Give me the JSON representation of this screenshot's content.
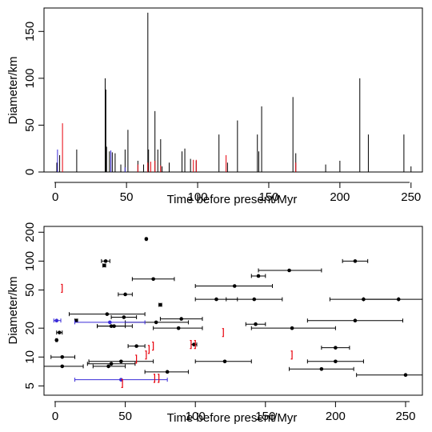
{
  "chart_data": [
    {
      "type": "bar",
      "xlabel": "Time before present/Myr",
      "ylabel": "Diameter/km",
      "xlim": [
        -8,
        258
      ],
      "ylim": [
        0,
        175
      ],
      "xticks": [
        "0",
        "50",
        "100",
        "150",
        "200",
        "250"
      ],
      "yticks": [
        "0",
        "50",
        "100",
        "150"
      ],
      "series": [
        {
          "color": "#000000",
          "points": [
            {
              "x": 1,
              "y": 10
            },
            {
              "x": 3,
              "y": 18
            },
            {
              "x": 15,
              "y": 24
            },
            {
              "x": 35,
              "y": 100
            },
            {
              "x": 35.5,
              "y": 88
            },
            {
              "x": 36,
              "y": 27
            },
            {
              "x": 38,
              "y": 22
            },
            {
              "x": 40,
              "y": 21
            },
            {
              "x": 42,
              "y": 20
            },
            {
              "x": 46,
              "y": 8
            },
            {
              "x": 49,
              "y": 24
            },
            {
              "x": 51,
              "y": 45
            },
            {
              "x": 58,
              "y": 12
            },
            {
              "x": 62,
              "y": 8
            },
            {
              "x": 65,
              "y": 170
            },
            {
              "x": 65.5,
              "y": 24
            },
            {
              "x": 70,
              "y": 65
            },
            {
              "x": 72,
              "y": 24
            },
            {
              "x": 74,
              "y": 35
            },
            {
              "x": 75,
              "y": 6
            },
            {
              "x": 80,
              "y": 10
            },
            {
              "x": 89,
              "y": 22
            },
            {
              "x": 91,
              "y": 25
            },
            {
              "x": 95,
              "y": 14
            },
            {
              "x": 99,
              "y": 12
            },
            {
              "x": 115,
              "y": 40
            },
            {
              "x": 121,
              "y": 10
            },
            {
              "x": 128,
              "y": 55
            },
            {
              "x": 142,
              "y": 40
            },
            {
              "x": 143,
              "y": 22
            },
            {
              "x": 145,
              "y": 70
            },
            {
              "x": 167,
              "y": 80
            },
            {
              "x": 169,
              "y": 20
            },
            {
              "x": 190,
              "y": 8
            },
            {
              "x": 200,
              "y": 12
            },
            {
              "x": 214,
              "y": 100
            },
            {
              "x": 220,
              "y": 40
            },
            {
              "x": 245,
              "y": 40
            },
            {
              "x": 250,
              "y": 6
            }
          ]
        },
        {
          "color": "#e8000b",
          "points": [
            {
              "x": 5,
              "y": 52
            },
            {
              "x": 58,
              "y": 8
            },
            {
              "x": 65,
              "y": 10
            },
            {
              "x": 67,
              "y": 11
            },
            {
              "x": 70,
              "y": 12
            },
            {
              "x": 74,
              "y": 7
            },
            {
              "x": 97,
              "y": 13
            },
            {
              "x": 99,
              "y": 13
            },
            {
              "x": 120,
              "y": 18
            },
            {
              "x": 169,
              "y": 10
            }
          ]
        },
        {
          "color": "#3a2bd8",
          "points": [
            {
              "x": 1.5,
              "y": 24
            },
            {
              "x": 39,
              "y": 23
            },
            {
              "x": 49,
              "y": 5
            }
          ]
        }
      ]
    },
    {
      "type": "scatter",
      "xlabel": "Time before present/Myr",
      "ylabel": "Diameter/km",
      "xlim": [
        -8,
        262
      ],
      "ylim": [
        4,
        230
      ],
      "yscale": "log",
      "xticks": [
        "0",
        "50",
        "100",
        "150",
        "200",
        "250"
      ],
      "yticks": [
        "5",
        "10",
        "20",
        "50",
        "100",
        "200"
      ],
      "points": [
        {
          "x": 65,
          "y": 170,
          "lo": 64.5,
          "hi": 65.5,
          "color": "#000000"
        },
        {
          "x": 214,
          "y": 100,
          "lo": 205,
          "hi": 223,
          "color": "#000000"
        },
        {
          "x": 36,
          "y": 100,
          "lo": 33,
          "hi": 39,
          "color": "#000000"
        },
        {
          "x": 35,
          "y": 90,
          "lo": 34,
          "hi": 36,
          "color": "#000000"
        },
        {
          "x": 167,
          "y": 80,
          "lo": 145,
          "hi": 190,
          "color": "#000000"
        },
        {
          "x": 145,
          "y": 70,
          "lo": 140,
          "hi": 150,
          "color": "#000000"
        },
        {
          "x": 70,
          "y": 65,
          "lo": 55,
          "hi": 85,
          "color": "#000000"
        },
        {
          "x": 128,
          "y": 55,
          "lo": 100,
          "hi": 155,
          "color": "#000000"
        },
        {
          "x": 50,
          "y": 45,
          "lo": 45,
          "hi": 55,
          "color": "#000000"
        },
        {
          "x": 115,
          "y": 40,
          "lo": 100,
          "hi": 130,
          "color": "#000000"
        },
        {
          "x": 142,
          "y": 40,
          "lo": 122,
          "hi": 162,
          "color": "#000000"
        },
        {
          "x": 220,
          "y": 40,
          "lo": 196,
          "hi": 245,
          "color": "#000000"
        },
        {
          "x": 245,
          "y": 40,
          "lo": 220,
          "hi": 270,
          "color": "#000000"
        },
        {
          "x": 75,
          "y": 35,
          "lo": 74,
          "hi": 76,
          "color": "#000000"
        },
        {
          "x": 37,
          "y": 28,
          "lo": 10,
          "hi": 64,
          "color": "#000000"
        },
        {
          "x": 49,
          "y": 26,
          "lo": 40,
          "hi": 58,
          "color": "#000000"
        },
        {
          "x": 90,
          "y": 25,
          "lo": 75,
          "hi": 105,
          "color": "#000000"
        },
        {
          "x": 15,
          "y": 24,
          "lo": 14,
          "hi": 16,
          "color": "#000000"
        },
        {
          "x": 72,
          "y": 23,
          "lo": 50,
          "hi": 95,
          "color": "#000000"
        },
        {
          "x": 143,
          "y": 22,
          "lo": 136,
          "hi": 150,
          "color": "#000000"
        },
        {
          "x": 214,
          "y": 24,
          "lo": 180,
          "hi": 248,
          "color": "#000000"
        },
        {
          "x": 40,
          "y": 21,
          "lo": 30,
          "hi": 50,
          "color": "#000000"
        },
        {
          "x": 42,
          "y": 21,
          "lo": 30,
          "hi": 55,
          "color": "#000000"
        },
        {
          "x": 88,
          "y": 20,
          "lo": 70,
          "hi": 105,
          "color": "#000000"
        },
        {
          "x": 169,
          "y": 20,
          "lo": 140,
          "hi": 200,
          "color": "#000000"
        },
        {
          "x": 3,
          "y": 18,
          "lo": 1,
          "hi": 5,
          "color": "#000000"
        },
        {
          "x": 1,
          "y": 15,
          "lo": 0.5,
          "hi": 1.5,
          "color": "#000000"
        },
        {
          "x": 99,
          "y": 13.5,
          "lo": 97,
          "hi": 101,
          "color": "#000000"
        },
        {
          "x": 58,
          "y": 13,
          "lo": 52,
          "hi": 64,
          "color": "#000000"
        },
        {
          "x": 200,
          "y": 12.5,
          "lo": 190,
          "hi": 210,
          "color": "#000000"
        },
        {
          "x": 5,
          "y": 10,
          "lo": -3,
          "hi": 14,
          "color": "#000000"
        },
        {
          "x": 47,
          "y": 9,
          "lo": 24,
          "hi": 70,
          "color": "#000000"
        },
        {
          "x": 121,
          "y": 9,
          "lo": 100,
          "hi": 140,
          "color": "#000000"
        },
        {
          "x": 200,
          "y": 9,
          "lo": 180,
          "hi": 220,
          "color": "#000000"
        },
        {
          "x": 5,
          "y": 8,
          "lo": -10,
          "hi": 20,
          "color": "#000000"
        },
        {
          "x": 38,
          "y": 8,
          "lo": 27,
          "hi": 50,
          "color": "#000000"
        },
        {
          "x": 40,
          "y": 8.5,
          "lo": 23,
          "hi": 57,
          "color": "#000000"
        },
        {
          "x": 190,
          "y": 7.5,
          "lo": 167,
          "hi": 213,
          "color": "#000000"
        },
        {
          "x": 80,
          "y": 7,
          "lo": 64,
          "hi": 95,
          "color": "#000000"
        },
        {
          "x": 250,
          "y": 6.5,
          "lo": 215,
          "hi": 280,
          "color": "#000000"
        },
        {
          "x": 1,
          "y": 24,
          "lo": -1,
          "hi": 4,
          "color": "#3a2bd8"
        },
        {
          "x": 39,
          "y": 23,
          "lo": 14,
          "hi": 64,
          "color": "#3a2bd8"
        },
        {
          "x": 47,
          "y": 5.8,
          "lo": 14,
          "hi": 80,
          "color": "#3a2bd8"
        }
      ],
      "ranges": [
        {
          "x": 5,
          "y": 52
        },
        {
          "x": 58,
          "y": 9.5
        },
        {
          "x": 65,
          "y": 10.5
        },
        {
          "x": 67,
          "y": 12
        },
        {
          "x": 70,
          "y": 13
        },
        {
          "x": 74,
          "y": 6
        },
        {
          "x": 71,
          "y": 6
        },
        {
          "x": 48,
          "y": 5.3
        },
        {
          "x": 97,
          "y": 13.5
        },
        {
          "x": 100,
          "y": 13.5
        },
        {
          "x": 120,
          "y": 18
        },
        {
          "x": 169,
          "y": 10.5
        }
      ],
      "range_color": "#e8000b"
    }
  ]
}
